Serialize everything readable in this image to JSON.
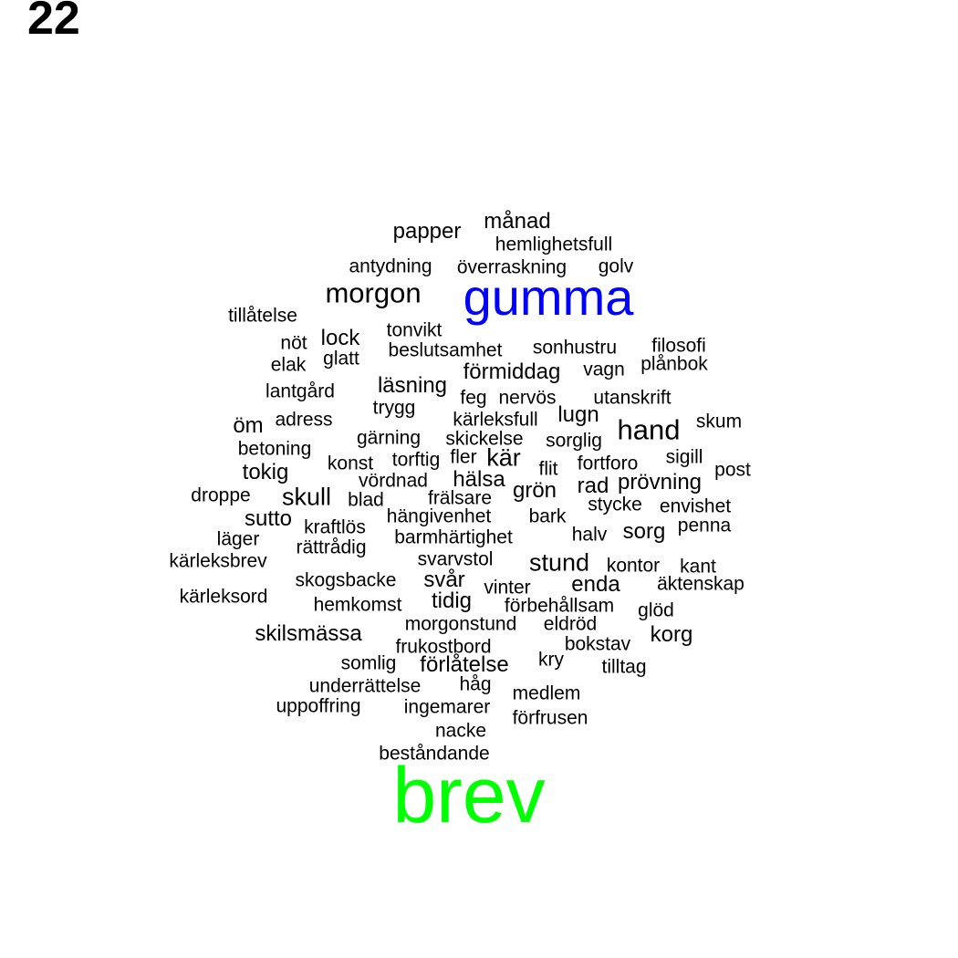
{
  "label": "22",
  "colors": {
    "gumma": "#0000ff",
    "brev": "#00ff00",
    "default": "#000000"
  },
  "words": {
    "gumma": "gumma",
    "brev": "brev",
    "hand": "hand",
    "manad": "månad",
    "papper": "papper",
    "hemlighetsfull": "hemlighetsfull",
    "antydning": "antydning",
    "overraskning": "överraskning",
    "golv": "golv",
    "morgon": "morgon",
    "tillatelse": "tillåtelse",
    "tonvikt": "tonvikt",
    "not": "nöt",
    "lock": "lock",
    "beslutsamhet": "beslutsamhet",
    "sonhustru": "sonhustru",
    "filosofi": "filosofi",
    "elak": "elak",
    "glatt": "glatt",
    "formiddag": "förmiddag",
    "vagn": "vagn",
    "planbok": "plånbok",
    "lantgard": "lantgård",
    "lasning": "läsning",
    "feg": "feg",
    "nervos": "nervös",
    "utanskrift": "utanskrift",
    "trygg": "trygg",
    "lugn": "lugn",
    "om": "öm",
    "adress": "adress",
    "karleksfull": "kärleksfull",
    "skum": "skum",
    "garning": "gärning",
    "skickelse": "skickelse",
    "sorglig": "sorglig",
    "betoning": "betoning",
    "fler": "fler",
    "kar": "kär",
    "konst": "konst",
    "torftig": "torftig",
    "fortforo": "fortforo",
    "sigill": "sigill",
    "post": "post",
    "tokig": "tokig",
    "vordnad": "vördnad",
    "halsa": "hälsa",
    "flit": "flit",
    "provning": "prövning",
    "rad": "rad",
    "droppe": "droppe",
    "skull": "skull",
    "blad": "blad",
    "fralsare": "frälsare",
    "gron": "grön",
    "stycke": "stycke",
    "envishet": "envishet",
    "sutto": "sutto",
    "hangivenhet": "hängivenhet",
    "bark": "bark",
    "kraftlos": "kraftlös",
    "penna": "penna",
    "lager": "läger",
    "barmhartighet": "barmhärtighet",
    "halv": "halv",
    "sorg": "sorg",
    "rattradig": "rättrådig",
    "karleksbrev": "kärleksbrev",
    "svarvstol": "svarvstol",
    "stund": "stund",
    "kontor": "kontor",
    "kant": "kant",
    "skogsbacke": "skogsbacke",
    "svar": "svår",
    "vinter": "vinter",
    "enda": "enda",
    "aktenskap": "äktenskap",
    "karleksord": "kärleksord",
    "hemkomst": "hemkomst",
    "tidig": "tidig",
    "forbehallsam": "förbehållsam",
    "glod": "glöd",
    "skilsmassa": "skilsmässa",
    "morgonstund": "morgonstund",
    "eldrod": "eldröd",
    "korg": "korg",
    "frukostbord": "frukostbord",
    "bokstav": "bokstav",
    "somlig": "somlig",
    "forlatelse": "förlåtelse",
    "kry": "kry",
    "tilltag": "tilltag",
    "underrattelse": "underrättelse",
    "hag": "håg",
    "medlem": "medlem",
    "uppoffring": "uppoffring",
    "ingemarer": "ingemarer",
    "forfrusen": "förfrusen",
    "nacke": "nacke",
    "bestandande": "beståndande"
  }
}
